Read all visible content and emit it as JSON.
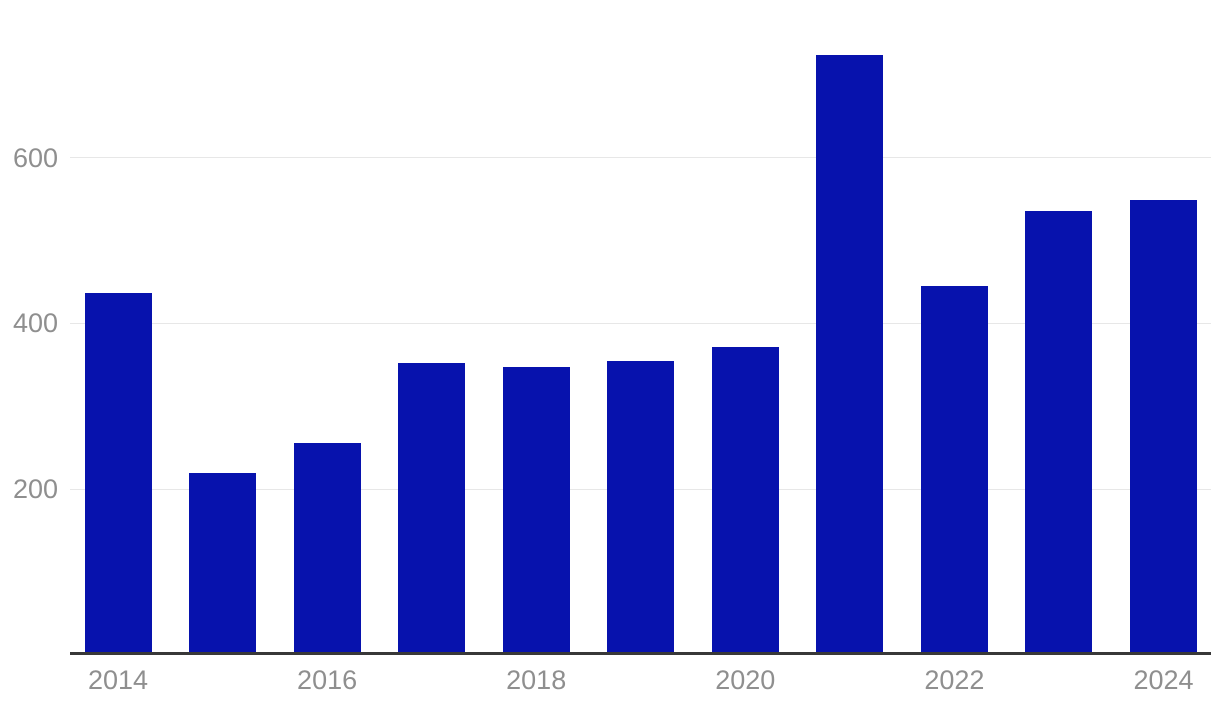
{
  "chart_data": {
    "type": "bar",
    "title": "",
    "xlabel": "",
    "ylabel": "",
    "categories": [
      "2014",
      "2015",
      "2016",
      "2017",
      "2018",
      "2019",
      "2020",
      "2021",
      "2022",
      "2023",
      "2024"
    ],
    "values": [
      437,
      220,
      256,
      352,
      347,
      354,
      371,
      724,
      445,
      535,
      549
    ],
    "y_ticks": [
      200,
      400,
      600
    ],
    "x_tick_labels": [
      "2014",
      "2016",
      "2018",
      "2020",
      "2022",
      "2024"
    ],
    "ylim": [
      0,
      790
    ],
    "grid": "horizontal-only",
    "legend": "none",
    "colors": {
      "bar": "#0712AD",
      "gridline": "#e7e7e7",
      "axis_line": "#383838",
      "tick_label": "#8f8f8f",
      "background": "#ffffff"
    }
  }
}
